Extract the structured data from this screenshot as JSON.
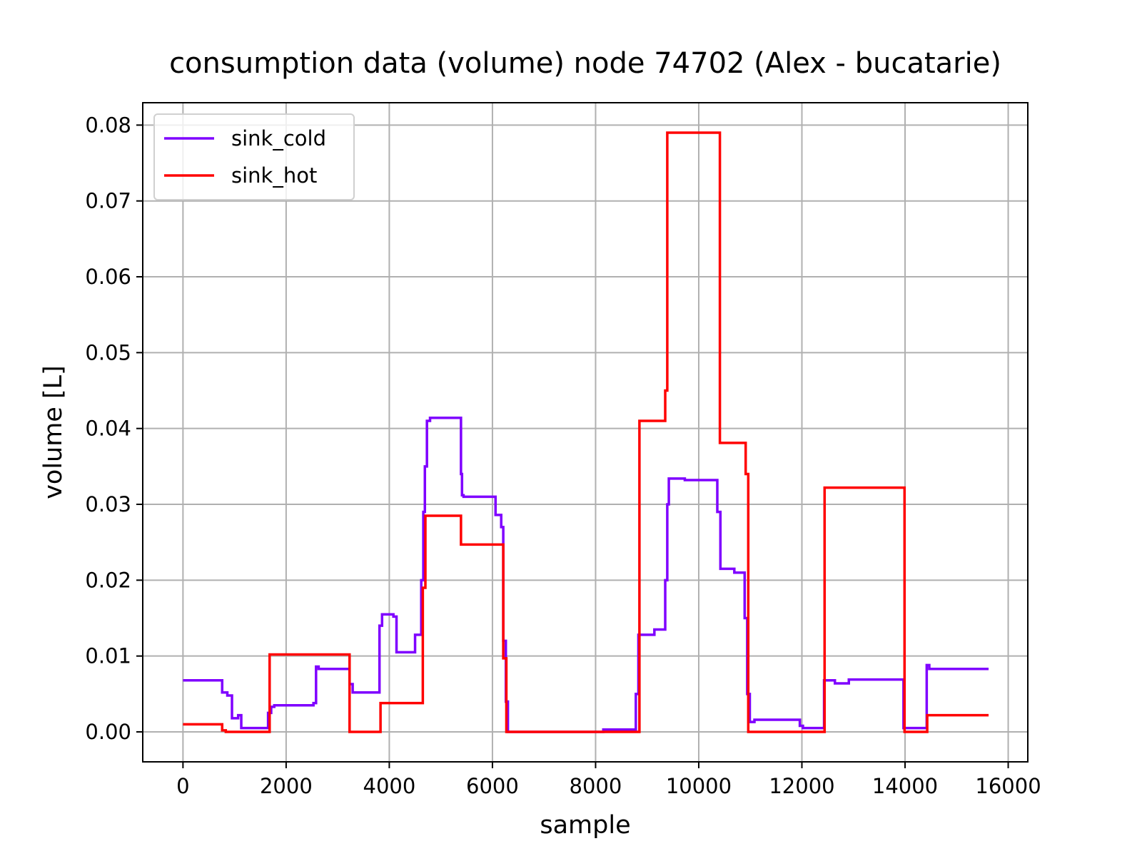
{
  "chart_data": {
    "type": "line",
    "title": "consumption data (volume) node 74702 (Alex - bucatarie)",
    "xlabel": "sample",
    "ylabel": "volume [L]",
    "xlim": [
      -780,
      16380
    ],
    "ylim": [
      -0.00395,
      0.08295
    ],
    "xticks": [
      0,
      2000,
      4000,
      6000,
      8000,
      10000,
      12000,
      14000,
      16000
    ],
    "yticks": [
      {
        "value": 0,
        "label": "0.00"
      },
      0.01,
      0.02,
      0.03,
      0.04,
      0.05,
      0.06,
      0.07,
      0.08
    ],
    "grid": true,
    "legend": "upper left",
    "series": [
      {
        "name": "sink_cold",
        "color": "#7f00ff",
        "x": [
          0,
          760,
          760,
          860,
          860,
          950,
          950,
          1070,
          1070,
          1130,
          1130,
          1650,
          1650,
          1710,
          1710,
          1770,
          1770,
          2530,
          2530,
          2580,
          2580,
          2630,
          2630,
          3230,
          3230,
          3290,
          3290,
          3810,
          3810,
          3860,
          3860,
          4080,
          4080,
          4140,
          4140,
          4500,
          4500,
          4620,
          4620,
          4660,
          4660,
          4690,
          4690,
          4730,
          4730,
          4790,
          4790,
          5390,
          5390,
          5410,
          5410,
          5440,
          5440,
          6060,
          6060,
          6170,
          6170,
          6210,
          6210,
          6260,
          6260,
          6300,
          6300,
          8150,
          8150,
          8780,
          8780,
          8830,
          8830,
          9140,
          9140,
          9350,
          9350,
          9390,
          9390,
          9420,
          9420,
          9730,
          9730,
          10360,
          10360,
          10420,
          10420,
          10690,
          10690,
          10890,
          10890,
          10940,
          10940,
          10990,
          10990,
          11080,
          11080,
          11960,
          11960,
          12020,
          12020,
          12430,
          12430,
          12640,
          12640,
          12910,
          12910,
          13970,
          13970,
          14420,
          14420,
          14470,
          14470,
          15620
        ],
        "values": [
          0.0068,
          0.0068,
          0.0052,
          0.0052,
          0.0048,
          0.0048,
          0.0018,
          0.0018,
          0.0022,
          0.0022,
          0.0005,
          0.0005,
          0.0025,
          0.0025,
          0.0033,
          0.0033,
          0.0035,
          0.0035,
          0.0038,
          0.0038,
          0.0086,
          0.0086,
          0.0083,
          0.0083,
          0.0063,
          0.0063,
          0.0052,
          0.0052,
          0.014,
          0.014,
          0.0155,
          0.0155,
          0.0152,
          0.0152,
          0.0105,
          0.0105,
          0.0128,
          0.0128,
          0.02,
          0.02,
          0.029,
          0.029,
          0.035,
          0.035,
          0.041,
          0.041,
          0.0414,
          0.0414,
          0.034,
          0.034,
          0.0312,
          0.0312,
          0.031,
          0.031,
          0.0286,
          0.0286,
          0.027,
          0.027,
          0.012,
          0.012,
          0.004,
          0.004,
          0,
          0,
          0.0003,
          0.0003,
          0.005,
          0.005,
          0.0128,
          0.0128,
          0.0135,
          0.0135,
          0.02,
          0.02,
          0.03,
          0.03,
          0.0334,
          0.0334,
          0.0332,
          0.0332,
          0.029,
          0.029,
          0.0215,
          0.0215,
          0.021,
          0.021,
          0.015,
          0.015,
          0.005,
          0.005,
          0.0013,
          0.0013,
          0.0016,
          0.0016,
          0.0008,
          0.0008,
          0.0005,
          0.0005,
          0.0068,
          0.0068,
          0.0064,
          0.0064,
          0.0069,
          0.0069,
          0.0005,
          0.0005,
          0.0088,
          0.0088,
          0.0083,
          0.0083
        ]
      },
      {
        "name": "sink_hot",
        "color": "#ff0000",
        "x": [
          0,
          760,
          760,
          830,
          830,
          1680,
          1680,
          3230,
          3230,
          3830,
          3830,
          4650,
          4650,
          4700,
          4700,
          5390,
          5390,
          6210,
          6210,
          6270,
          6270,
          8850,
          8850,
          9350,
          9350,
          9390,
          9390,
          10410,
          10410,
          10910,
          10910,
          10960,
          10960,
          12440,
          12440,
          13990,
          13990,
          14430,
          14430,
          15620
        ],
        "values": [
          0.001,
          0.001,
          0.0002,
          0.0002,
          0,
          0,
          0.0102,
          0.0102,
          0,
          0,
          0.0038,
          0.0038,
          0.019,
          0.019,
          0.0285,
          0.0285,
          0.0247,
          0.0247,
          0.0097,
          0.0097,
          0,
          0,
          0.041,
          0.041,
          0.045,
          0.045,
          0.079,
          0.079,
          0.0381,
          0.0381,
          0.034,
          0.034,
          0,
          0,
          0.0322,
          0.0322,
          0,
          0,
          0.0022,
          0.0022
        ]
      }
    ]
  }
}
